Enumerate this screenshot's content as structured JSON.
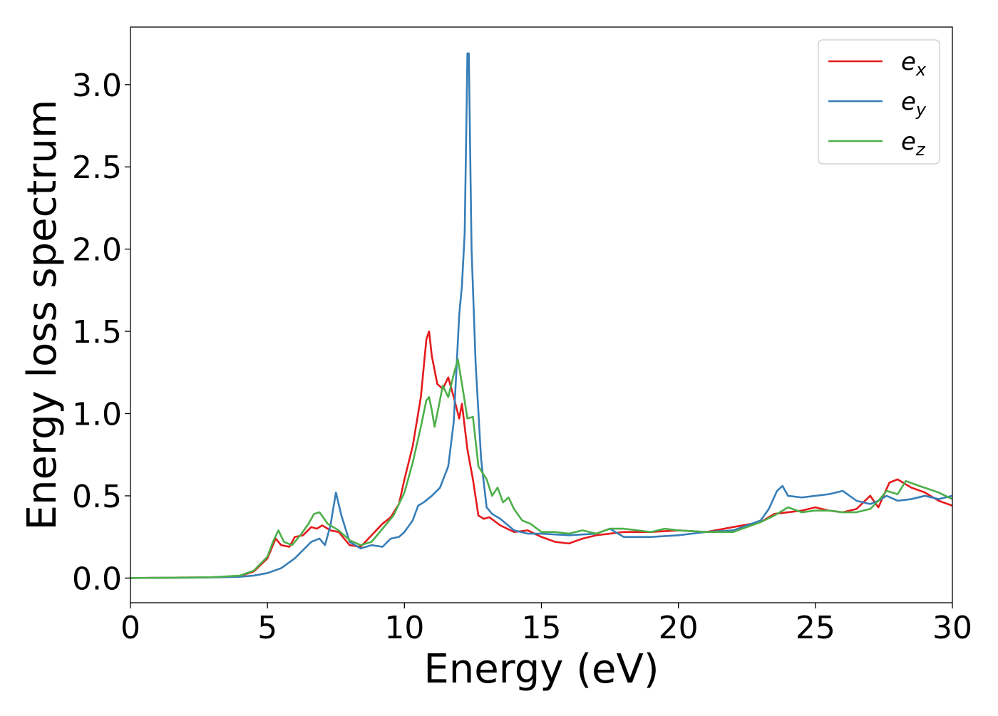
{
  "chart_data": {
    "type": "line",
    "title": "",
    "xlabel": "Energy (eV)",
    "ylabel": "Energy loss spectrum",
    "xlim": [
      0,
      30
    ],
    "ylim": [
      -0.15,
      3.35
    ],
    "xticks": [
      0,
      5,
      10,
      15,
      20,
      25,
      30
    ],
    "xtick_labels": [
      "0",
      "5",
      "10",
      "15",
      "20",
      "25",
      "30"
    ],
    "yticks": [
      0.0,
      0.5,
      1.0,
      1.5,
      2.0,
      2.5,
      3.0
    ],
    "ytick_labels": [
      "0.0",
      "0.5",
      "1.0",
      "1.5",
      "2.0",
      "2.5",
      "3.0"
    ],
    "grid": false,
    "legend_position": "top-right",
    "series": [
      {
        "name": "ex",
        "base": "e",
        "sub": "x",
        "color": "#e41a1c",
        "x": [
          0,
          2,
          3,
          4,
          4.5,
          5,
          5.3,
          5.5,
          5.8,
          6.0,
          6.3,
          6.6,
          6.8,
          7.0,
          7.3,
          7.6,
          8.0,
          8.4,
          8.8,
          9.2,
          9.5,
          9.8,
          10.0,
          10.3,
          10.6,
          10.8,
          10.9,
          11.0,
          11.2,
          11.4,
          11.6,
          11.8,
          12.0,
          12.1,
          12.3,
          12.5,
          12.7,
          12.9,
          13.1,
          13.5,
          14.0,
          14.5,
          15.0,
          15.5,
          16.0,
          16.5,
          17.0,
          18.0,
          19.0,
          20.0,
          21.0,
          22.0,
          23.0,
          23.5,
          24.0,
          24.5,
          25.0,
          25.5,
          26.0,
          26.5,
          27.0,
          27.3,
          27.7,
          28.0,
          28.5,
          29.0,
          29.5,
          30.0
        ],
        "values": [
          0.0,
          0.003,
          0.005,
          0.012,
          0.04,
          0.12,
          0.24,
          0.2,
          0.19,
          0.25,
          0.26,
          0.31,
          0.3,
          0.32,
          0.29,
          0.28,
          0.2,
          0.19,
          0.26,
          0.33,
          0.37,
          0.45,
          0.6,
          0.8,
          1.1,
          1.45,
          1.5,
          1.35,
          1.18,
          1.15,
          1.22,
          1.1,
          0.97,
          1.06,
          0.78,
          0.6,
          0.38,
          0.36,
          0.37,
          0.32,
          0.28,
          0.29,
          0.25,
          0.22,
          0.21,
          0.24,
          0.26,
          0.28,
          0.28,
          0.29,
          0.28,
          0.31,
          0.34,
          0.39,
          0.4,
          0.41,
          0.43,
          0.41,
          0.4,
          0.42,
          0.5,
          0.43,
          0.58,
          0.6,
          0.55,
          0.52,
          0.47,
          0.44
        ]
      },
      {
        "name": "ey",
        "base": "e",
        "sub": "y",
        "color": "#377eb8",
        "x": [
          0,
          2,
          3,
          4,
          4.5,
          5,
          5.5,
          6.0,
          6.3,
          6.6,
          6.9,
          7.1,
          7.3,
          7.5,
          7.7,
          8.0,
          8.4,
          8.8,
          9.2,
          9.5,
          9.8,
          10.0,
          10.3,
          10.5,
          10.7,
          11.0,
          11.3,
          11.6,
          11.8,
          12.0,
          12.1,
          12.2,
          12.3,
          12.35,
          12.45,
          12.6,
          12.8,
          13.0,
          13.2,
          13.5,
          14.0,
          14.5,
          15.0,
          16.0,
          17.0,
          17.5,
          18.0,
          19.0,
          20.0,
          21.0,
          22.0,
          23.0,
          23.3,
          23.6,
          23.8,
          24.0,
          24.5,
          25.0,
          25.5,
          26.0,
          26.5,
          27.0,
          27.3,
          27.6,
          28.0,
          28.5,
          29.0,
          29.5,
          30.0
        ],
        "values": [
          0.0,
          0.002,
          0.004,
          0.008,
          0.015,
          0.03,
          0.06,
          0.12,
          0.17,
          0.22,
          0.24,
          0.2,
          0.32,
          0.52,
          0.38,
          0.22,
          0.18,
          0.2,
          0.19,
          0.24,
          0.25,
          0.28,
          0.35,
          0.44,
          0.46,
          0.5,
          0.55,
          0.68,
          0.95,
          1.6,
          1.78,
          2.1,
          3.19,
          3.19,
          2.0,
          1.3,
          0.72,
          0.43,
          0.39,
          0.36,
          0.29,
          0.27,
          0.27,
          0.26,
          0.27,
          0.3,
          0.25,
          0.25,
          0.26,
          0.28,
          0.29,
          0.35,
          0.42,
          0.53,
          0.56,
          0.5,
          0.49,
          0.5,
          0.51,
          0.53,
          0.47,
          0.45,
          0.47,
          0.5,
          0.47,
          0.48,
          0.5,
          0.48,
          0.5
        ]
      },
      {
        "name": "ez",
        "base": "e",
        "sub": "z",
        "color": "#4daf4a",
        "x": [
          0,
          2,
          3,
          4,
          4.5,
          5,
          5.2,
          5.4,
          5.6,
          5.9,
          6.2,
          6.5,
          6.7,
          6.9,
          7.2,
          7.6,
          8.0,
          8.4,
          8.8,
          9.2,
          9.6,
          10.0,
          10.3,
          10.6,
          10.8,
          10.9,
          11.0,
          11.1,
          11.2,
          11.4,
          11.6,
          11.8,
          11.95,
          12.1,
          12.3,
          12.5,
          12.7,
          13.0,
          13.2,
          13.4,
          13.6,
          13.8,
          14.0,
          14.3,
          14.6,
          15.0,
          15.5,
          16.0,
          16.5,
          17.0,
          17.5,
          18.0,
          19.0,
          19.5,
          20.0,
          21.0,
          22.0,
          23.0,
          23.5,
          24.0,
          24.5,
          25.0,
          25.5,
          26.0,
          26.5,
          27.0,
          27.3,
          27.6,
          28.0,
          28.3,
          28.8,
          29.5,
          30.0
        ],
        "values": [
          0.0,
          0.003,
          0.005,
          0.015,
          0.045,
          0.13,
          0.22,
          0.29,
          0.22,
          0.2,
          0.26,
          0.33,
          0.39,
          0.4,
          0.33,
          0.29,
          0.23,
          0.2,
          0.22,
          0.3,
          0.38,
          0.52,
          0.7,
          0.92,
          1.08,
          1.1,
          1.02,
          0.92,
          1.0,
          1.17,
          1.1,
          1.24,
          1.33,
          1.18,
          0.97,
          0.98,
          0.68,
          0.6,
          0.5,
          0.55,
          0.46,
          0.49,
          0.42,
          0.35,
          0.33,
          0.28,
          0.28,
          0.27,
          0.29,
          0.27,
          0.3,
          0.3,
          0.28,
          0.3,
          0.29,
          0.28,
          0.28,
          0.34,
          0.38,
          0.43,
          0.4,
          0.41,
          0.41,
          0.4,
          0.4,
          0.42,
          0.47,
          0.53,
          0.51,
          0.59,
          0.56,
          0.52,
          0.48
        ]
      }
    ]
  }
}
